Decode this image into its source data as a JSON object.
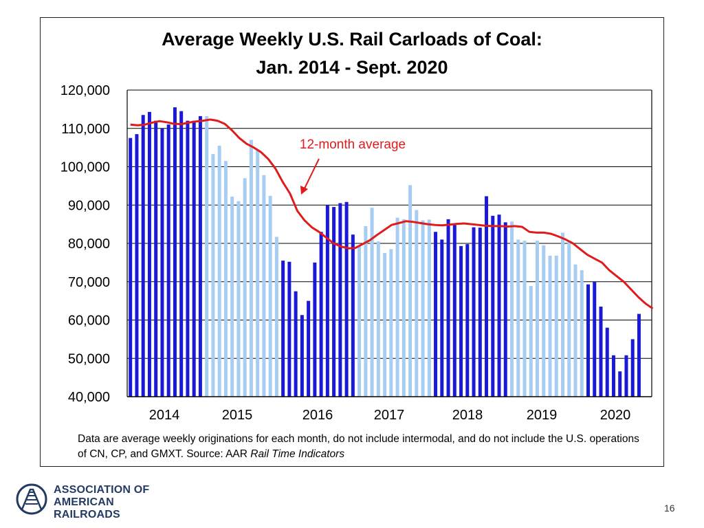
{
  "chart_data": {
    "type": "bar",
    "title": "Average Weekly U.S. Rail Carloads of Coal:",
    "subtitle": "Jan. 2014 - Sept. 2020",
    "ylim": [
      40000,
      120000
    ],
    "yticks": [
      "120,000",
      "110,000",
      "100,000",
      "90,000",
      "80,000",
      "70,000",
      "60,000",
      "50,000",
      "40,000"
    ],
    "ytick_values": [
      120000,
      110000,
      100000,
      90000,
      80000,
      70000,
      60000,
      50000,
      40000
    ],
    "xlabel": "",
    "ylabel": "",
    "years": [
      "2014",
      "2015",
      "2016",
      "2017",
      "2018",
      "2019",
      "2020"
    ],
    "year_colors": [
      "#1a1ad6",
      "#a8cdf2",
      "#1a1ad6",
      "#a8cdf2",
      "#1a1ad6",
      "#a8cdf2",
      "#1a1ad6"
    ],
    "series": [
      {
        "name": "Average weekly carloads",
        "values": [
          107500,
          108500,
          113500,
          114300,
          112000,
          110000,
          111000,
          115500,
          114500,
          112000,
          112000,
          113200,
          113200,
          103300,
          105500,
          101500,
          92200,
          91000,
          97000,
          107000,
          104500,
          97800,
          92400,
          81700,
          75500,
          75200,
          67500,
          61300,
          65000,
          75000,
          83000,
          90000,
          89500,
          90500,
          90800,
          82300,
          79200,
          84500,
          89300,
          80500,
          77500,
          78500,
          86700,
          86300,
          95200,
          88700,
          86000,
          86200,
          83000,
          81000,
          86300,
          84800,
          79300,
          79800,
          84200,
          84100,
          92300,
          87200,
          87500,
          85500,
          85700,
          81000,
          80700,
          68900,
          80700,
          79500,
          76800,
          76800,
          82800,
          80500,
          74500,
          73000,
          69300,
          70000,
          63500,
          58000,
          50800,
          46600,
          50800,
          55000,
          61600
        ]
      },
      {
        "name": "12-month average",
        "values": [
          111000,
          110800,
          111000,
          111500,
          111900,
          111600,
          111200,
          111100,
          111500,
          111800,
          112000,
          112300,
          112000,
          111200,
          109500,
          107500,
          106000,
          105000,
          103800,
          102000,
          99500,
          96000,
          93000,
          88500,
          86000,
          84200,
          83000,
          81500,
          80000,
          79200,
          78700,
          78800,
          79800,
          80800,
          82200,
          83500,
          84800,
          85300,
          85800,
          85600,
          85300,
          85000,
          84800,
          84700,
          84900,
          85100,
          85200,
          85000,
          84800,
          84600,
          84500,
          84500,
          84400,
          84500,
          84300,
          83000,
          82800,
          82800,
          82500,
          81800,
          81000,
          80000,
          78500,
          77000,
          76000,
          75000,
          73000,
          71500,
          70000,
          68000,
          66000,
          64300,
          63000
        ]
      }
    ],
    "annotation": "12-month average",
    "grid": true
  },
  "note": {
    "text": "Data are average weekly originations for each month, do not include intermodal, and do not include the U.S. operations of CN, CP, and GMXT.   Source: AAR ",
    "source": "Rail Time Indicators"
  },
  "logo": {
    "line1": "ASSOCIATION OF",
    "line2": "AMERICAN RAILROADS"
  },
  "page_number": "16",
  "colors": {
    "line": "#e01b1b",
    "grid": "#000000",
    "dark_bar": "#1a1ad6",
    "light_bar": "#a8cdf2",
    "logo": "#233a63"
  }
}
